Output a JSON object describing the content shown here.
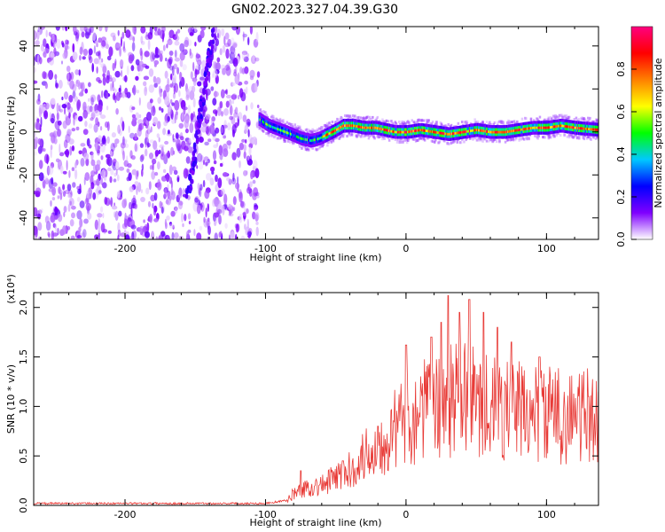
{
  "figure": {
    "title": "GN02.2023.327.04.39.G30"
  },
  "chart_data": [
    {
      "type": "heatmap",
      "xlabel": "Height of straight line (km)",
      "ylabel": "Frequency (Hz)",
      "xlim": [
        -265,
        137
      ],
      "ylim": [
        -50,
        49
      ],
      "xticks": [
        -200,
        -100,
        0,
        100
      ],
      "yticks": [
        -40,
        -20,
        0,
        20,
        40
      ],
      "xtick_labels": [
        "-200",
        "-100",
        "0",
        "100"
      ],
      "ytick_labels": [
        "-40",
        "-20",
        "0",
        "20",
        "40"
      ],
      "noise_region_x": [
        -265,
        -105
      ],
      "ridge_path": [
        [
          -105,
          6
        ],
        [
          -98,
          3
        ],
        [
          -90,
          1
        ],
        [
          -82,
          -1
        ],
        [
          -75,
          -3
        ],
        [
          -68,
          -4
        ],
        [
          -62,
          -3
        ],
        [
          -56,
          -1
        ],
        [
          -50,
          1
        ],
        [
          -45,
          3
        ],
        [
          -38,
          3
        ],
        [
          -30,
          2
        ],
        [
          -22,
          2
        ],
        [
          -15,
          1
        ],
        [
          -8,
          0
        ],
        [
          0,
          0
        ],
        [
          10,
          1
        ],
        [
          20,
          0
        ],
        [
          30,
          -1
        ],
        [
          40,
          0
        ],
        [
          50,
          1
        ],
        [
          60,
          0
        ],
        [
          70,
          0
        ],
        [
          80,
          1
        ],
        [
          90,
          2
        ],
        [
          100,
          2
        ],
        [
          110,
          3
        ],
        [
          120,
          2
        ],
        [
          137,
          1
        ]
      ],
      "streak_path": [
        [
          -155,
          -30
        ],
        [
          -150,
          -10
        ],
        [
          -146,
          10
        ],
        [
          -141,
          30
        ],
        [
          -137,
          48
        ]
      ],
      "grid": false,
      "colorbar": {
        "label": "Normalized spectral amplitude",
        "range": [
          0,
          1
        ],
        "ticks": [
          0.0,
          0.2,
          0.4,
          0.6,
          0.8
        ],
        "tick_labels": [
          "0.0",
          "0.2",
          "0.4",
          "0.6",
          "0.8"
        ],
        "colors": [
          "#ffffff",
          "#7f00ff",
          "#0000ff",
          "#00c8ff",
          "#00ff00",
          "#ffff00",
          "#ff8000",
          "#ff0000",
          "#ff0080"
        ]
      }
    },
    {
      "type": "line",
      "xlabel": "Height of straight line (km)",
      "ylabel": "SNR (10 * v/v)",
      "y_multiplier_label": "(x10⁴)",
      "xlim": [
        -265,
        137
      ],
      "ylim": [
        0,
        2.15
      ],
      "xticks": [
        -200,
        -100,
        0,
        100
      ],
      "yticks": [
        0.0,
        0.5,
        1.0,
        1.5,
        2.0
      ],
      "xtick_labels": [
        "-200",
        "-100",
        "0",
        "100"
      ],
      "ytick_labels": [
        "0.0",
        "0.5",
        "1.0",
        "1.5",
        "2.0"
      ],
      "grid": false,
      "color": "#e83a36",
      "envelope": [
        [
          -265,
          0.02
        ],
        [
          -100,
          0.02
        ],
        [
          -85,
          0.05
        ],
        [
          -80,
          0.12
        ],
        [
          -70,
          0.18
        ],
        [
          -60,
          0.2
        ],
        [
          -50,
          0.28
        ],
        [
          -40,
          0.35
        ],
        [
          -30,
          0.5
        ],
        [
          -20,
          0.6
        ],
        [
          -10,
          0.75
        ],
        [
          0,
          0.85
        ],
        [
          10,
          0.95
        ],
        [
          20,
          1.0
        ],
        [
          30,
          1.05
        ],
        [
          40,
          1.1
        ],
        [
          50,
          1.05
        ],
        [
          60,
          1.0
        ],
        [
          80,
          0.95
        ],
        [
          100,
          0.92
        ],
        [
          120,
          0.9
        ],
        [
          137,
          0.9
        ]
      ],
      "peaks": [
        [
          -75,
          0.35
        ],
        [
          -45,
          0.45
        ],
        [
          -20,
          0.8
        ],
        [
          0,
          1.62
        ],
        [
          18,
          1.7
        ],
        [
          25,
          1.85
        ],
        [
          30,
          2.12
        ],
        [
          38,
          1.95
        ],
        [
          45,
          2.08
        ],
        [
          55,
          1.95
        ],
        [
          65,
          1.8
        ],
        [
          75,
          1.65
        ],
        [
          95,
          1.5
        ],
        [
          130,
          1.1
        ]
      ]
    }
  ]
}
